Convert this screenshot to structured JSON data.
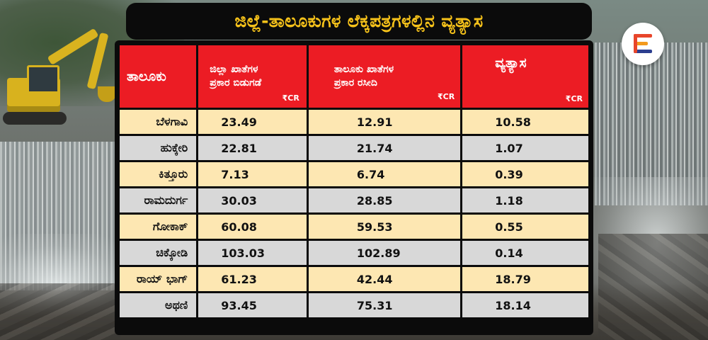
{
  "title": "ಜಿಲ್ಲೆ-ತಾಲೂಕುಗಳ ಲೆಕ್ಕಪತ್ರಗಳಲ್ಲಿನ ವ್ಯತ್ಯಾಸ",
  "logo": {
    "icon": "e-letter-logo-icon",
    "colors": [
      "#e8452a",
      "#f39a1e",
      "#2c3e8f"
    ]
  },
  "table": {
    "headers": {
      "taluk": "ತಾಲೂಕು",
      "district_line1": "ಜಿಲ್ಲಾ ಖಾತೆಗಳ",
      "district_line2": "ಪ್ರಕಾರ ಬಿಡುಗಡೆ",
      "taluk_line1": "ತಾಲೂಕು ಖಾತೆಗಳ",
      "taluk_line2": "ಪ್ರಕಾರ ರಸೀದಿ",
      "difference": "ವ್ಯತ್ಯಾಸ",
      "unit": "₹CR"
    },
    "rows": [
      {
        "taluk": "ಬೆಳಗಾವಿ",
        "district_release": "23.49",
        "taluk_receipt": "12.91",
        "difference": "10.58"
      },
      {
        "taluk": "ಹುಕ್ಕೇರಿ",
        "district_release": "22.81",
        "taluk_receipt": "21.74",
        "difference": "1.07"
      },
      {
        "taluk": "ಕಿತ್ತೂರು",
        "district_release": "7.13",
        "taluk_receipt": "6.74",
        "difference": "0.39"
      },
      {
        "taluk": "ರಾಮದುರ್ಗ",
        "district_release": "30.03",
        "taluk_receipt": "28.85",
        "difference": "1.18"
      },
      {
        "taluk": "ಗೋಕಾಕ್",
        "district_release": "60.08",
        "taluk_receipt": "59.53",
        "difference": "0.55"
      },
      {
        "taluk": "ಚಿಕ್ಕೋಡಿ",
        "district_release": "103.03",
        "taluk_receipt": "102.89",
        "difference": "0.14"
      },
      {
        "taluk": "ರಾಯ್ ಭಾಗ್",
        "district_release": "61.23",
        "taluk_receipt": "42.44",
        "difference": "18.79"
      },
      {
        "taluk": "ಅಥಣಿ",
        "district_release": "93.45",
        "taluk_receipt": "75.31",
        "difference": "18.14"
      }
    ]
  },
  "colors": {
    "header_red": "#ec1c24",
    "title_yellow": "#f6c21a",
    "row_cream": "#fde7b2",
    "row_grey": "#d8d8d8"
  }
}
